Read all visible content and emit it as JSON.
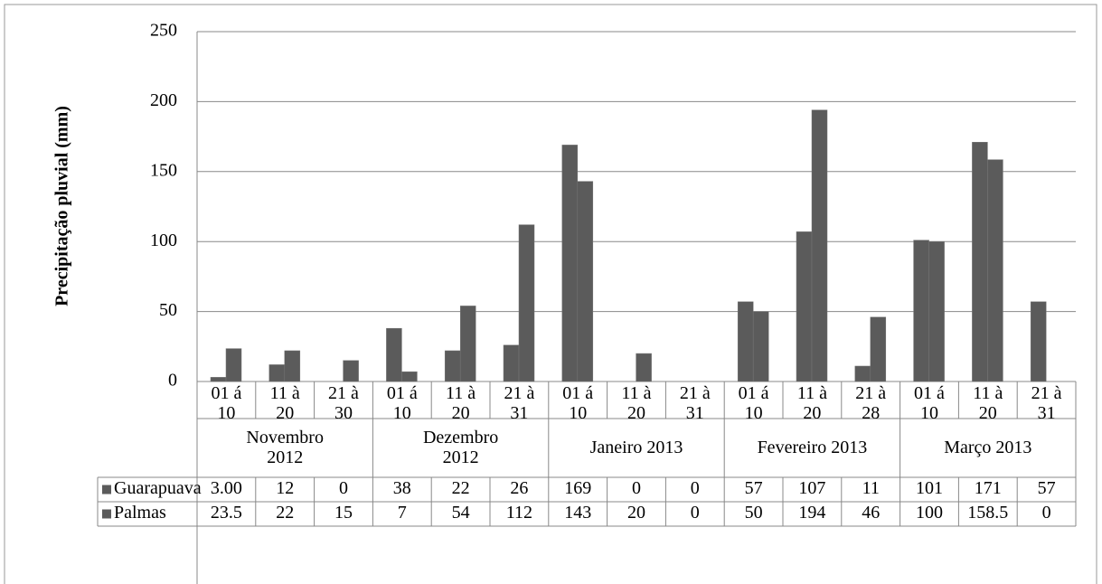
{
  "chart_data": {
    "type": "bar",
    "y_label": "Precipitação pluvial (mm)",
    "categories": [
      "01 á\n10",
      "11 à\n20",
      "21 à\n30",
      "01 á\n10",
      "11 à\n20",
      "21 à\n31",
      "01 á\n10",
      "11 à\n20",
      "21 à\n31",
      "01 á\n10",
      "11 à\n20",
      "21 à\n28",
      "01 á\n10",
      "11 à\n20",
      "21 à\n31"
    ],
    "groups": [
      "Novembro\n2012",
      "Dezembro\n2012",
      "Janeiro 2013",
      "Fevereiro 2013",
      "Março 2013"
    ],
    "series": [
      {
        "name": "Guarapuava",
        "color": "#5b5b5b",
        "values": [
          3,
          12,
          0,
          38,
          22,
          26,
          169,
          0,
          0,
          57,
          107,
          11,
          101,
          171,
          57
        ],
        "value_labels": [
          "3.00",
          "12",
          "0",
          "38",
          "22",
          "26",
          "169",
          "0",
          "0",
          "57",
          "107",
          "11",
          "101",
          "171",
          "57"
        ]
      },
      {
        "name": "Palmas",
        "color": "#5b5b5b",
        "values": [
          23.5,
          22,
          15,
          7,
          54,
          112,
          143,
          20,
          0,
          50,
          194,
          46,
          100,
          158.5,
          0
        ]
      }
    ],
    "ylim": [
      0,
      250
    ],
    "yticks": [
      0,
      50,
      100,
      150,
      200,
      250
    ],
    "grid": true
  }
}
